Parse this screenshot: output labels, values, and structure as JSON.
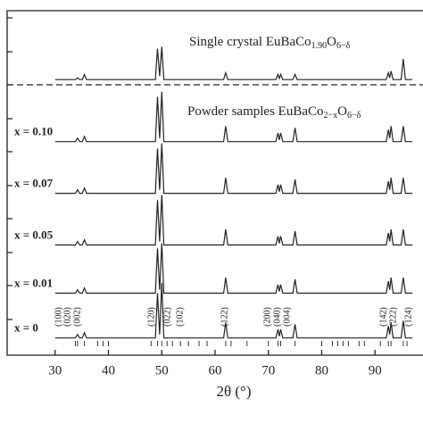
{
  "chart_data": {
    "type": "line",
    "x_label": "2θ (°)",
    "xlim": [
      21,
      99
    ],
    "xticks": [
      30,
      40,
      50,
      60,
      70,
      80,
      90
    ],
    "ylim": [
      0,
      100
    ],
    "x": [
      30,
      33.8,
      34.2,
      34.6,
      35.1,
      35.5,
      35.9,
      48.8,
      49.2,
      49.6,
      50.0,
      50.4,
      61.6,
      62.0,
      62.4,
      71.4,
      71.8,
      72.05,
      72.3,
      72.7,
      74.6,
      75.0,
      75.4,
      92.1,
      92.5,
      92.75,
      93.0,
      93.4,
      94.9,
      95.3,
      95.7,
      97
    ],
    "color": "#222222",
    "series": [
      {
        "values": [
          80,
          80,
          80.5,
          80,
          80,
          81.5,
          80,
          80,
          89,
          81,
          89.5,
          80,
          80,
          82,
          80,
          80,
          81.5,
          80.3,
          81.5,
          80,
          80,
          81.5,
          80,
          80,
          82,
          80.5,
          82.5,
          80,
          80,
          86,
          80,
          80
        ]
      },
      {
        "name": "x = 0.10",
        "values": [
          62,
          62,
          63,
          62,
          62,
          63.5,
          62,
          62,
          75,
          63,
          76.5,
          62,
          62,
          66.5,
          62,
          62,
          64.5,
          62.5,
          64.5,
          62,
          62,
          66,
          62,
          62,
          65.5,
          63,
          66.5,
          62,
          62,
          66.5,
          62,
          62
        ]
      },
      {
        "name": "x = 0.07",
        "values": [
          47,
          47,
          48,
          47,
          47,
          48.5,
          47,
          47,
          60,
          48,
          61.5,
          47,
          47,
          51.5,
          47,
          47,
          49.5,
          47.5,
          49.5,
          47,
          47,
          51,
          47,
          47,
          50.5,
          48,
          51.5,
          47,
          47,
          51.5,
          47,
          47
        ]
      },
      {
        "name": "x = 0.05",
        "values": [
          32,
          32,
          33,
          32,
          32,
          33.5,
          32,
          32,
          45,
          33,
          46.5,
          32,
          32,
          36.5,
          32,
          32,
          34.5,
          32.5,
          34.5,
          32,
          32,
          36,
          32,
          32,
          35.5,
          33,
          36.5,
          32,
          32,
          36.5,
          32,
          32
        ]
      },
      {
        "name": "x = 0.01",
        "values": [
          18,
          18,
          19,
          18,
          18,
          19.5,
          18,
          18,
          31,
          19,
          32.5,
          18,
          18,
          22.5,
          18,
          18,
          20.5,
          18.5,
          20.5,
          18,
          18,
          22,
          18,
          18,
          21.5,
          19,
          22.5,
          18,
          18,
          22.5,
          18,
          18
        ]
      },
      {
        "name": "x = 0",
        "values": [
          5,
          5,
          6,
          5,
          5,
          6.5,
          5,
          5,
          18,
          6,
          21,
          5,
          5,
          9.5,
          5,
          5,
          7.5,
          5.5,
          7.5,
          5,
          5,
          9,
          5,
          5,
          8.5,
          6,
          9.5,
          5,
          5,
          10,
          5,
          5
        ]
      }
    ],
    "separator": 78.5,
    "annotations": [
      [
        {
          "text": "Single crystal EuBaCo"
        },
        {
          "text": "1.90",
          "sub": true
        },
        {
          "text": "O"
        },
        {
          "text": "6−δ",
          "sub": true
        }
      ],
      [
        {
          "text": "Powder samples EuBaCo"
        },
        {
          "text": "2−x",
          "sub": true
        },
        {
          "text": "O"
        },
        {
          "text": "6−δ",
          "sub": true
        }
      ]
    ],
    "reflection_labels": [
      "(100)",
      "(020)",
      "(002)",
      "(120)",
      "(022)",
      "(102)",
      "(122)",
      "(200)",
      "(040)",
      "(004)",
      "(142)",
      "(222)",
      "(124)"
    ],
    "reflections": [
      33.8,
      34.2,
      35.5,
      38,
      39,
      40,
      48,
      49.2,
      50,
      51,
      52,
      53.5,
      55,
      57,
      58.5,
      62,
      63,
      66,
      70,
      71.8,
      72.3,
      75,
      80,
      82,
      83,
      84,
      85,
      87,
      88,
      91,
      92.5,
      93,
      95.3,
      96
    ]
  }
}
